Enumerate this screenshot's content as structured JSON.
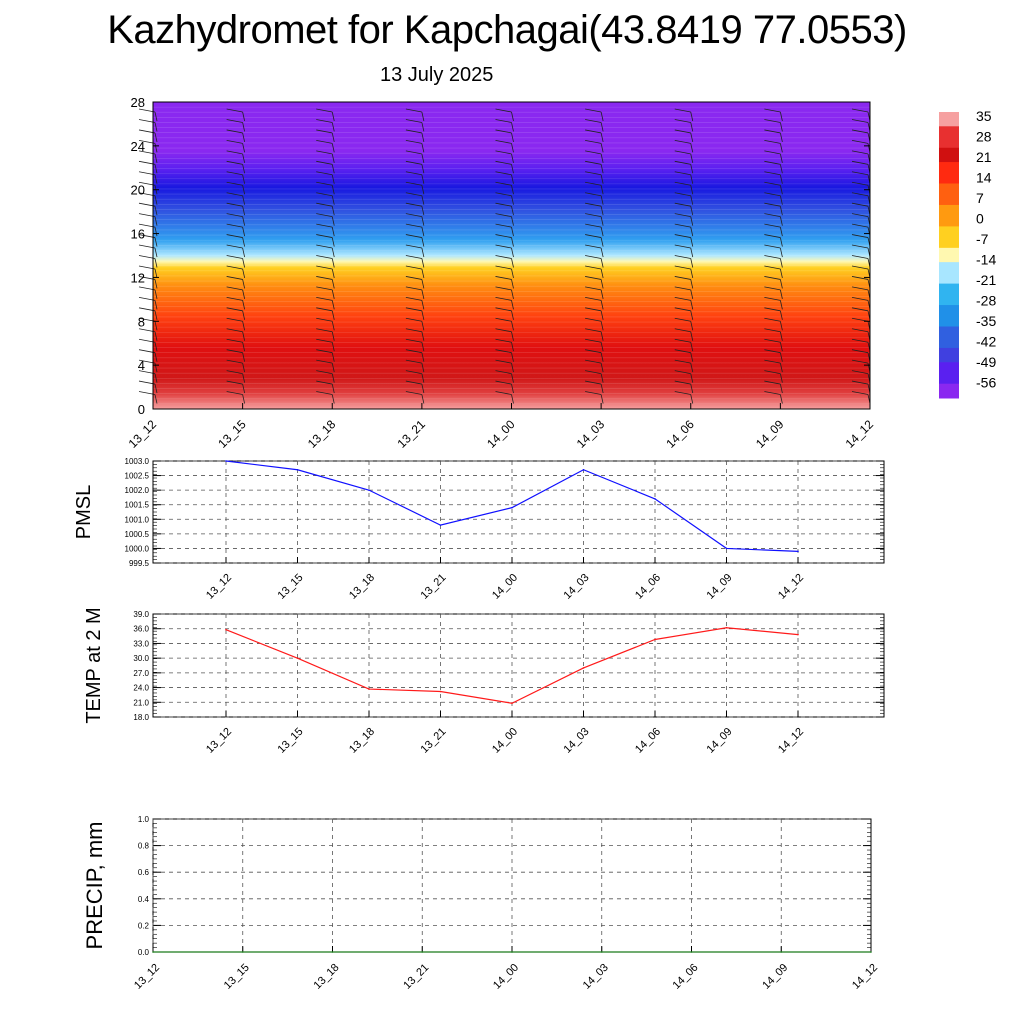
{
  "title": "Kazhydromet for Kapchagai(43.8419 77.0553)",
  "subtitle": "13 July 2025",
  "colors": {
    "pmsl_line": "#1010ff",
    "temp_line": "#ff1a1a",
    "precip_line": "#1a7a1a"
  },
  "colorbar": {
    "labels": [
      "35",
      "28",
      "21",
      "14",
      "7",
      "0",
      "-7",
      "-14",
      "-21",
      "-28",
      "-35",
      "-42",
      "-49",
      "-56"
    ],
    "colors": [
      "#f6a0a0",
      "#e83030",
      "#d01010",
      "#ff4010",
      "#ff8c10",
      "#ffd020",
      "#fff8b0",
      "#a8e6ff",
      "#30b4f0",
      "#2080e8",
      "#3050e0",
      "#4038e0",
      "#5a20f0",
      "#8a28f0"
    ]
  },
  "chart_data": [
    {
      "type": "heatmap",
      "ylim": [
        0,
        28
      ],
      "yticks": [
        "0",
        "4",
        "8",
        "12",
        "16",
        "20",
        "24",
        "28"
      ],
      "x_tick_labels": [
        "13_12",
        "13_15",
        "13_18",
        "13_21",
        "14_00",
        "14_03",
        "14_06",
        "14_09",
        "14_12"
      ],
      "description_bands": [
        {
          "from": 0,
          "to": 2,
          "value": 30
        },
        {
          "from": 2,
          "to": 8,
          "value": 21
        },
        {
          "from": 8,
          "to": 13,
          "value": 7
        },
        {
          "from": 13,
          "to": 17,
          "value": -21
        },
        {
          "from": 17,
          "to": 22,
          "value": -49
        },
        {
          "from": 22,
          "to": 28,
          "value": -56
        }
      ]
    },
    {
      "type": "line",
      "ylabel": "PMSL",
      "ylim": [
        999.5,
        1003.0
      ],
      "yticks": [
        "999.5",
        "1000.0",
        "1000.5",
        "1001.0",
        "1001.5",
        "1002.0",
        "1002.5",
        "1003.0"
      ],
      "categories": [
        "13_12",
        "13_15",
        "13_18",
        "13_21",
        "14_00",
        "14_03",
        "14_06",
        "14_09",
        "14_12"
      ],
      "values": [
        1003.0,
        1002.7,
        1002.0,
        1000.8,
        1001.4,
        1002.7,
        1001.7,
        1000.0,
        999.9
      ]
    },
    {
      "type": "line",
      "ylabel": "TEMP at 2 M",
      "ylim": [
        18.0,
        39.0
      ],
      "yticks": [
        "18.0",
        "21.0",
        "24.0",
        "27.0",
        "30.0",
        "33.0",
        "36.0",
        "39.0"
      ],
      "categories": [
        "13_12",
        "13_15",
        "13_18",
        "13_21",
        "14_00",
        "14_03",
        "14_06",
        "14_09",
        "14_12"
      ],
      "values": [
        35.8,
        30.0,
        23.7,
        23.2,
        20.8,
        28.0,
        33.8,
        36.2,
        34.8
      ]
    },
    {
      "type": "line",
      "ylabel": "PRECIP, mm",
      "ylim": [
        0.0,
        1.0
      ],
      "yticks": [
        "0.0",
        "0.2",
        "0.4",
        "0.6",
        "0.8",
        "1.0"
      ],
      "categories": [
        "13_12",
        "13_15",
        "13_18",
        "13_21",
        "14_00",
        "14_03",
        "14_06",
        "14_09",
        "14_12"
      ],
      "values": [
        0,
        0,
        0,
        0,
        0,
        0,
        0,
        0,
        0
      ]
    }
  ]
}
